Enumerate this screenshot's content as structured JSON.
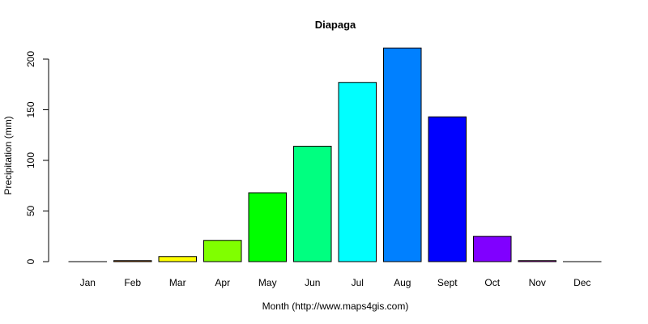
{
  "chart_data": {
    "type": "bar",
    "title": "Diapaga",
    "xlabel": "Month (http://www.maps4gis.com)",
    "ylabel": "Precipitation (mm)",
    "categories": [
      "Jan",
      "Feb",
      "Mar",
      "Apr",
      "May",
      "Jun",
      "Jul",
      "Aug",
      "Sept",
      "Oct",
      "Nov",
      "Dec"
    ],
    "values": [
      0,
      1,
      5,
      21,
      68,
      114,
      177,
      211,
      143,
      25,
      1,
      0
    ],
    "colors": [
      "#FF0000",
      "#FF8000",
      "#FFFF00",
      "#80FF00",
      "#00FF00",
      "#00FF80",
      "#00FFFF",
      "#0080FF",
      "#0000FF",
      "#8000FF",
      "#FF00FF",
      "#FF0080"
    ],
    "ylim": [
      0,
      200
    ],
    "yticks": [
      0,
      50,
      100,
      150,
      200
    ],
    "grid": false,
    "legend": null
  }
}
